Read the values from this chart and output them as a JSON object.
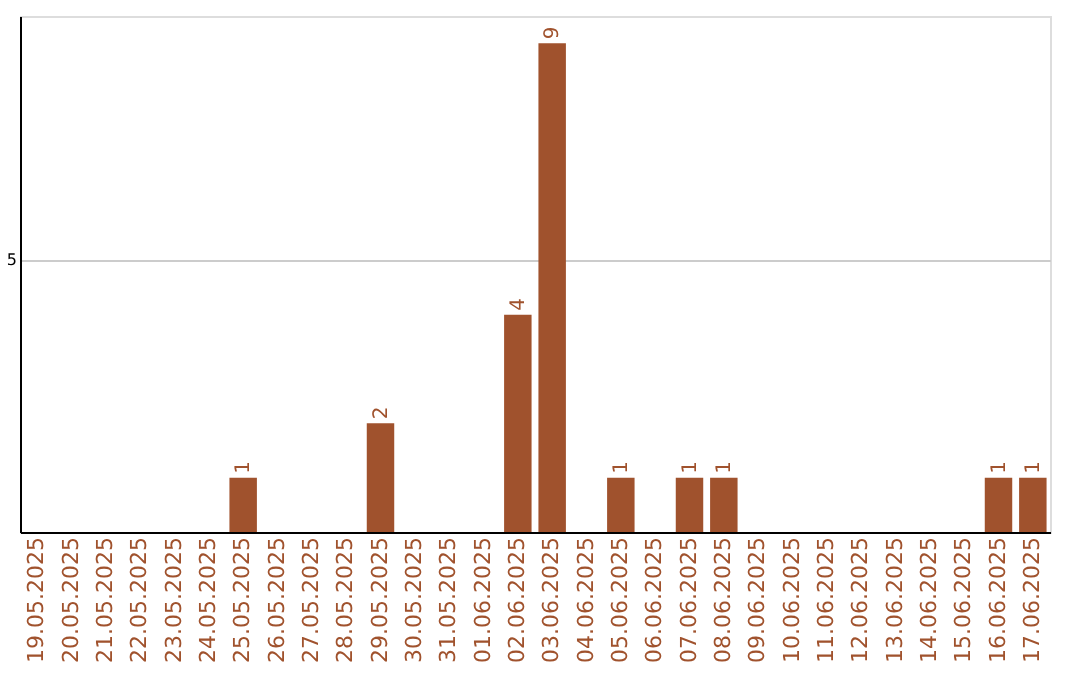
{
  "chart_data": {
    "type": "bar",
    "categories": [
      "19.05.2025",
      "20.05.2025",
      "21.05.2025",
      "22.05.2025",
      "23.05.2025",
      "24.05.2025",
      "25.05.2025",
      "26.05.2025",
      "27.05.2025",
      "28.05.2025",
      "29.05.2025",
      "30.05.2025",
      "31.05.2025",
      "01.06.2025",
      "02.06.2025",
      "03.06.2025",
      "04.06.2025",
      "05.06.2025",
      "06.06.2025",
      "07.06.2025",
      "08.06.2025",
      "09.06.2025",
      "10.06.2025",
      "11.06.2025",
      "12.06.2025",
      "13.06.2025",
      "14.06.2025",
      "15.06.2025",
      "16.06.2025",
      "17.06.2025"
    ],
    "values": [
      0,
      0,
      0,
      0,
      0,
      0,
      1,
      0,
      0,
      0,
      2,
      0,
      0,
      0,
      4,
      9,
      0,
      1,
      0,
      1,
      1,
      0,
      0,
      0,
      0,
      0,
      0,
      0,
      1,
      1
    ],
    "value_labels": [
      null,
      null,
      null,
      null,
      null,
      null,
      "1",
      null,
      null,
      null,
      "2",
      null,
      null,
      null,
      "4",
      "9",
      null,
      "1",
      null,
      "1",
      "1",
      null,
      null,
      null,
      null,
      null,
      null,
      null,
      "1",
      "1"
    ],
    "color": "#a0522d",
    "ylim": [
      0,
      9.5
    ],
    "yticks": [
      5
    ],
    "grid": "y"
  }
}
